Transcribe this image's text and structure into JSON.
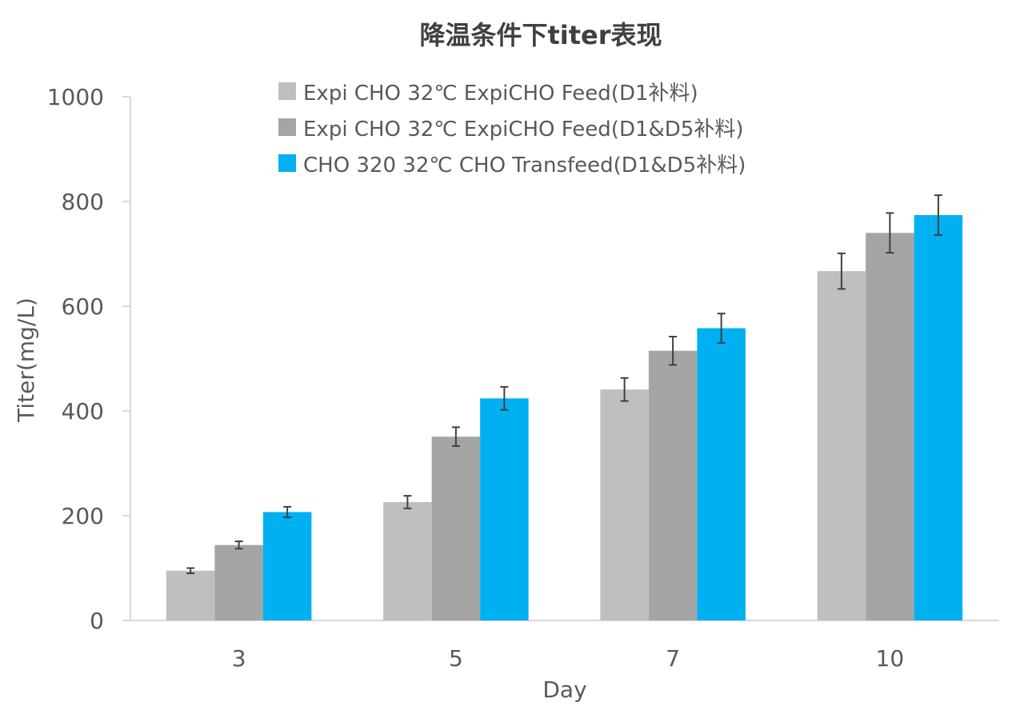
{
  "chart_data": {
    "type": "bar",
    "title": "降温条件下titer表现",
    "xlabel": "Day",
    "ylabel": "Titer(mg/L)",
    "ylim": [
      0,
      1000
    ],
    "yticks": [
      0,
      200,
      400,
      600,
      800,
      1000
    ],
    "categories": [
      "3",
      "5",
      "7",
      "10"
    ],
    "grid": false,
    "legend_position": "top-center",
    "series": [
      {
        "name": "Expi CHO  32℃  ExpiCHO Feed(D1补料)",
        "color": "#bfbfbf",
        "values": [
          95,
          226,
          441,
          667
        ],
        "errors": [
          5,
          12,
          22,
          34
        ]
      },
      {
        "name": "Expi CHO  32℃  ExpiCHO Feed(D1&D5补料)",
        "color": "#a5a5a5",
        "values": [
          144,
          351,
          515,
          740
        ],
        "errors": [
          7,
          18,
          27,
          38
        ]
      },
      {
        "name": "CHO 320  32℃  CHO Transfeed(D1&D5补料)",
        "color": "#00b0f0",
        "values": [
          207,
          424,
          558,
          774
        ],
        "errors": [
          10,
          22,
          28,
          38
        ]
      }
    ]
  }
}
